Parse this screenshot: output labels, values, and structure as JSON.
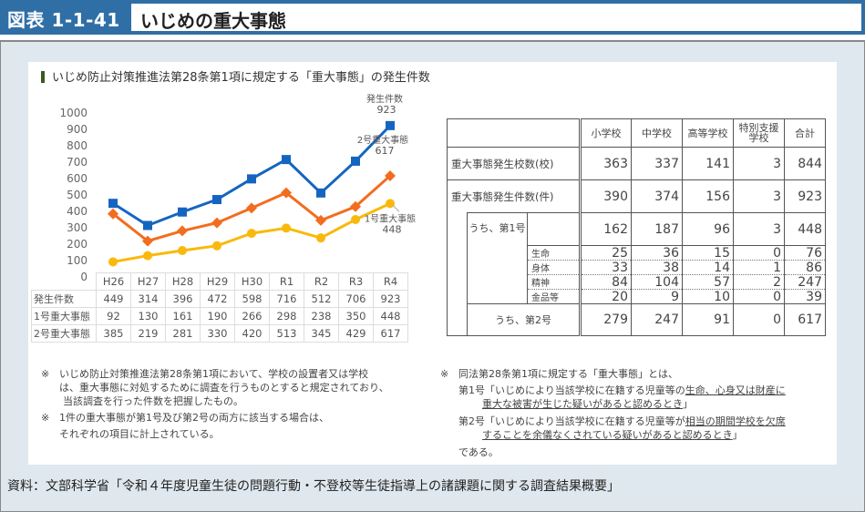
{
  "header": {
    "figure_number": "図表 1-1-41",
    "title": "いじめの重大事態"
  },
  "subtitle": "いじめ防止対策推進法第28条第1項に規定する「重大事態」の発生件数",
  "chart_data": {
    "type": "line",
    "title": "いじめ防止対策推進法第28条第1項に規定する「重大事態」の発生件数",
    "categories": [
      "H26",
      "H27",
      "H28",
      "H29",
      "H30",
      "R1",
      "R2",
      "R3",
      "R4"
    ],
    "series": [
      {
        "name": "発生件数",
        "color": "#1565c0",
        "marker": "square",
        "values": [
          449,
          314,
          396,
          472,
          598,
          716,
          512,
          706,
          923
        ]
      },
      {
        "name": "1号重大事態",
        "color": "#f9b90c",
        "marker": "circle",
        "values": [
          92,
          130,
          161,
          190,
          266,
          298,
          238,
          350,
          448
        ]
      },
      {
        "name": "2号重大事態",
        "color": "#f26d1f",
        "marker": "diamond",
        "values": [
          385,
          219,
          281,
          330,
          420,
          513,
          345,
          429,
          617
        ]
      }
    ],
    "yticks": [
      0,
      100,
      200,
      300,
      400,
      500,
      600,
      700,
      800,
      900,
      1000
    ],
    "ylim": [
      0,
      1000
    ],
    "xlabel": "",
    "ylabel": "",
    "grid": false,
    "annotations": [
      {
        "series": "発生件数",
        "label": "発生件数",
        "value": "923"
      },
      {
        "series": "2号重大事態",
        "label": "2号重大事態",
        "value": "617"
      },
      {
        "series": "1号重大事態",
        "label": "1号重大事態",
        "value": "448"
      }
    ]
  },
  "data_table": {
    "rows": [
      {
        "label": "発生件数",
        "series_index": 0
      },
      {
        "label": "1号重大事態",
        "series_index": 1
      },
      {
        "label": "2号重大事態",
        "series_index": 2
      }
    ]
  },
  "summary_table": {
    "headers": [
      "小学校",
      "中学校",
      "高等学校",
      "特別支援\n学校",
      "合計"
    ],
    "header_sp1": "特別支援",
    "header_sp2": "学校",
    "rows": {
      "schools": {
        "label": "重大事態発生校数(校)",
        "values": [
          "363",
          "337",
          "141",
          "3",
          "844"
        ]
      },
      "cases": {
        "label": "重大事態発生件数(件)",
        "values": [
          "390",
          "374",
          "156",
          "3",
          "923"
        ]
      },
      "type1": {
        "label": "うち、第1号",
        "values": [
          "162",
          "187",
          "96",
          "3",
          "448"
        ]
      },
      "life": {
        "label": "生命",
        "values": [
          "25",
          "36",
          "15",
          "0",
          "76"
        ]
      },
      "body": {
        "label": "身体",
        "values": [
          "33",
          "38",
          "14",
          "1",
          "86"
        ]
      },
      "mind": {
        "label": "精神",
        "values": [
          "84",
          "104",
          "57",
          "2",
          "247"
        ]
      },
      "money": {
        "label": "金品等",
        "values": [
          "20",
          "9",
          "10",
          "0",
          "39"
        ]
      },
      "type2": {
        "label": "うち、第2号",
        "values": [
          "279",
          "247",
          "91",
          "0",
          "617"
        ]
      }
    }
  },
  "notes_left": [
    {
      "mark": "※",
      "lines": [
        "いじめ防止対策推進法第28条第1項において、学校の設置者又は学校",
        "は、重大事態に対処するために調査を行うものとすると規定されており、",
        "当該調査を行った件数を把握したもの。"
      ]
    },
    {
      "mark": "※",
      "lines": [
        "1件の重大事態が第1号及び第2号の両方に該当する場合は、",
        "それぞれの項目に計上されている。"
      ]
    }
  ],
  "notes_right": {
    "mark": "※",
    "intro": "同法第28条第1項に規定する「重大事態」とは、",
    "item1_prefix": "第1号「いじめにより当該学校に在籍する児童等の",
    "item1_u1": "生命、心身又は財産に",
    "item1_u2": "重大な被害が生じた疑いがあると認めるとき",
    "item1_suffix": "」",
    "item2_prefix": "第2号「いじめにより当該学校に在籍する児童等が",
    "item2_u1": "相当の期間学校を欠席",
    "item2_u2": "することを余儀なくされている疑いがあると認めるとき",
    "item2_suffix": "」",
    "closing": "である。"
  },
  "source": "資料：文部科学省「令和４年度児童生徒の問題行動・不登校等生徒指導上の諸課題に関する調査結果概要」"
}
